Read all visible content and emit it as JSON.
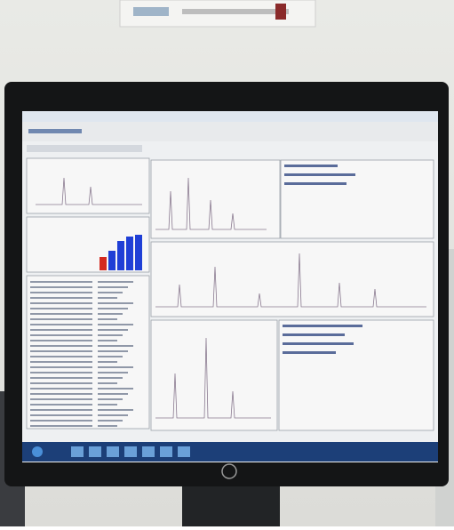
{
  "mini_chart": {
    "type": "bar",
    "values": [
      15,
      22,
      33,
      38,
      40
    ],
    "colors": [
      "#d42a20",
      "#1f3fd6",
      "#1f3fd6",
      "#1f3fd6",
      "#1f3fd6"
    ],
    "ylim": [
      0,
      50
    ]
  }
}
